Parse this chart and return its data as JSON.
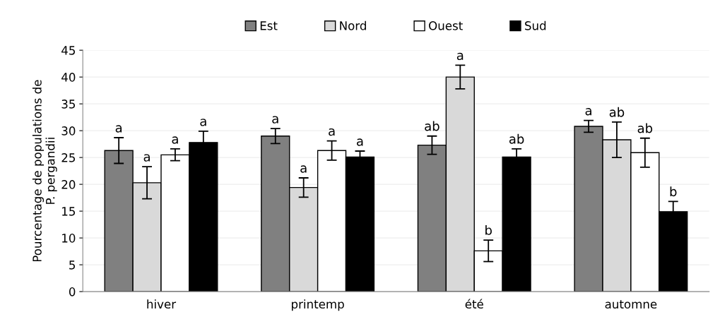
{
  "chart_data": {
    "type": "bar",
    "ylabel": "Pourcentage de populations de\nP. pergandii",
    "categories": [
      "hiver",
      "printemp",
      "été",
      "automne"
    ],
    "series": [
      {
        "name": "Est",
        "color": "#808080",
        "values": [
          26.3,
          29.0,
          27.3,
          30.8
        ],
        "errors": [
          2.4,
          1.4,
          1.7,
          1.1
        ],
        "value_labels": [
          "a",
          "a",
          "ab",
          "a"
        ]
      },
      {
        "name": "Nord",
        "color": "#d9d9d9",
        "values": [
          20.3,
          19.4,
          40.0,
          28.3
        ],
        "errors": [
          3.0,
          1.8,
          2.2,
          3.3
        ],
        "value_labels": [
          "a",
          "a",
          "a",
          "ab"
        ]
      },
      {
        "name": "Ouest",
        "color": "#ffffff",
        "values": [
          25.5,
          26.3,
          7.6,
          25.9
        ],
        "errors": [
          1.1,
          1.8,
          2.0,
          2.7
        ],
        "value_labels": [
          "a",
          "a",
          "b",
          "ab"
        ]
      },
      {
        "name": "Sud",
        "color": "#000000",
        "values": [
          27.8,
          25.1,
          25.1,
          14.9
        ],
        "errors": [
          2.1,
          1.1,
          1.5,
          1.9
        ],
        "value_labels": [
          "a",
          "a",
          "ab",
          "b"
        ]
      }
    ],
    "ylim": [
      0,
      45
    ],
    "yticks": [
      0,
      5,
      10,
      15,
      20,
      25,
      30,
      35,
      40,
      45
    ],
    "grid": "y",
    "legend": "top"
  }
}
